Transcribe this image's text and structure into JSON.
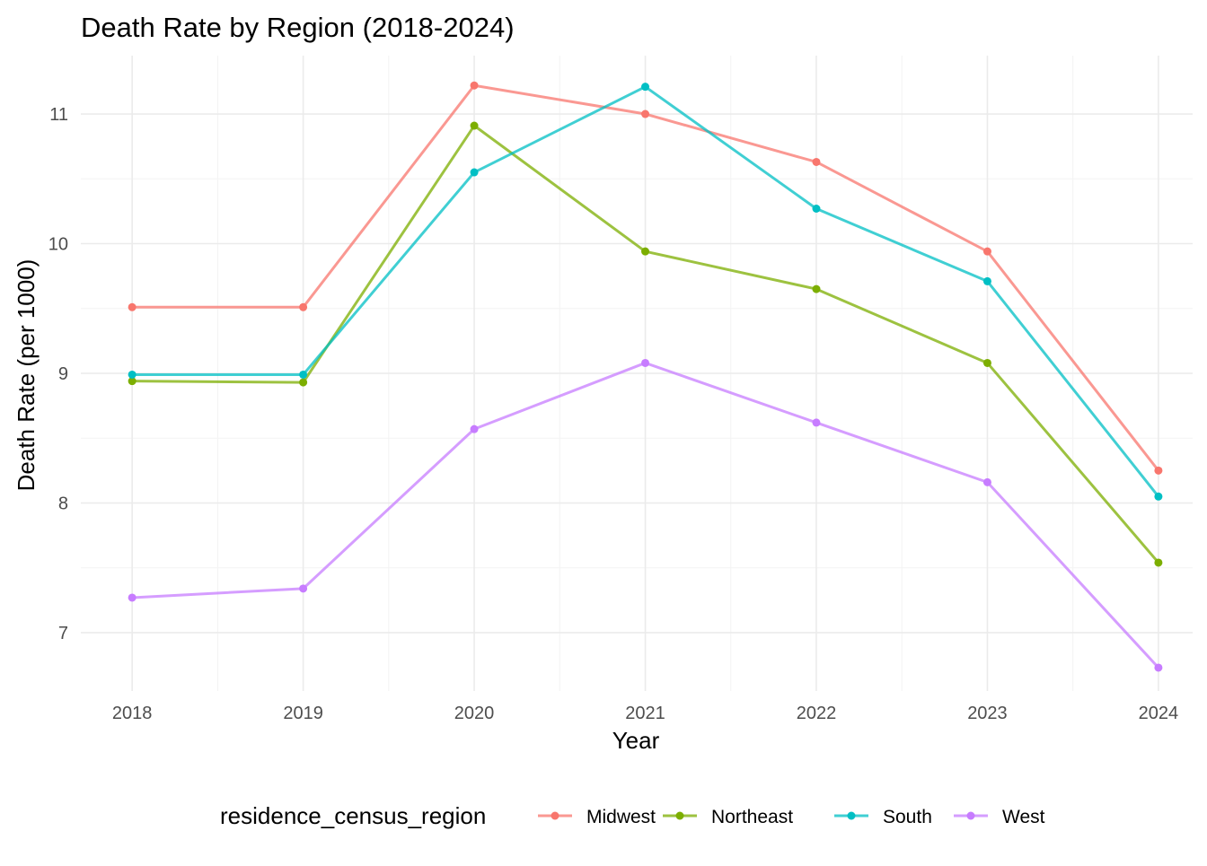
{
  "chart_data": {
    "type": "line",
    "title": "Death Rate by Region (2018-2024)",
    "xlabel": "Year",
    "ylabel": "Death Rate (per 1000)",
    "x": [
      2018,
      2019,
      2020,
      2021,
      2022,
      2023,
      2024
    ],
    "xlim": [
      2017.7,
      2024.2
    ],
    "ylim": [
      6.55,
      11.45
    ],
    "x_ticks": [
      2018,
      2019,
      2020,
      2021,
      2022,
      2023,
      2024
    ],
    "y_ticks": [
      7,
      8,
      9,
      10,
      11
    ],
    "grid": true,
    "legend": {
      "title": "residence_census_region",
      "position": "bottom"
    },
    "series": [
      {
        "name": "Midwest",
        "color": "#F8766D",
        "values": [
          9.51,
          9.51,
          11.22,
          11.0,
          10.63,
          9.94,
          8.25
        ]
      },
      {
        "name": "Northeast",
        "color": "#7CAE00",
        "values": [
          8.94,
          8.93,
          10.91,
          9.94,
          9.65,
          9.08,
          7.54
        ]
      },
      {
        "name": "South",
        "color": "#00BFC4",
        "values": [
          8.99,
          8.99,
          10.55,
          11.21,
          10.27,
          9.71,
          8.05
        ]
      },
      {
        "name": "West",
        "color": "#C77CFF",
        "values": [
          7.27,
          7.34,
          8.57,
          9.08,
          8.62,
          8.16,
          6.73
        ]
      }
    ]
  }
}
